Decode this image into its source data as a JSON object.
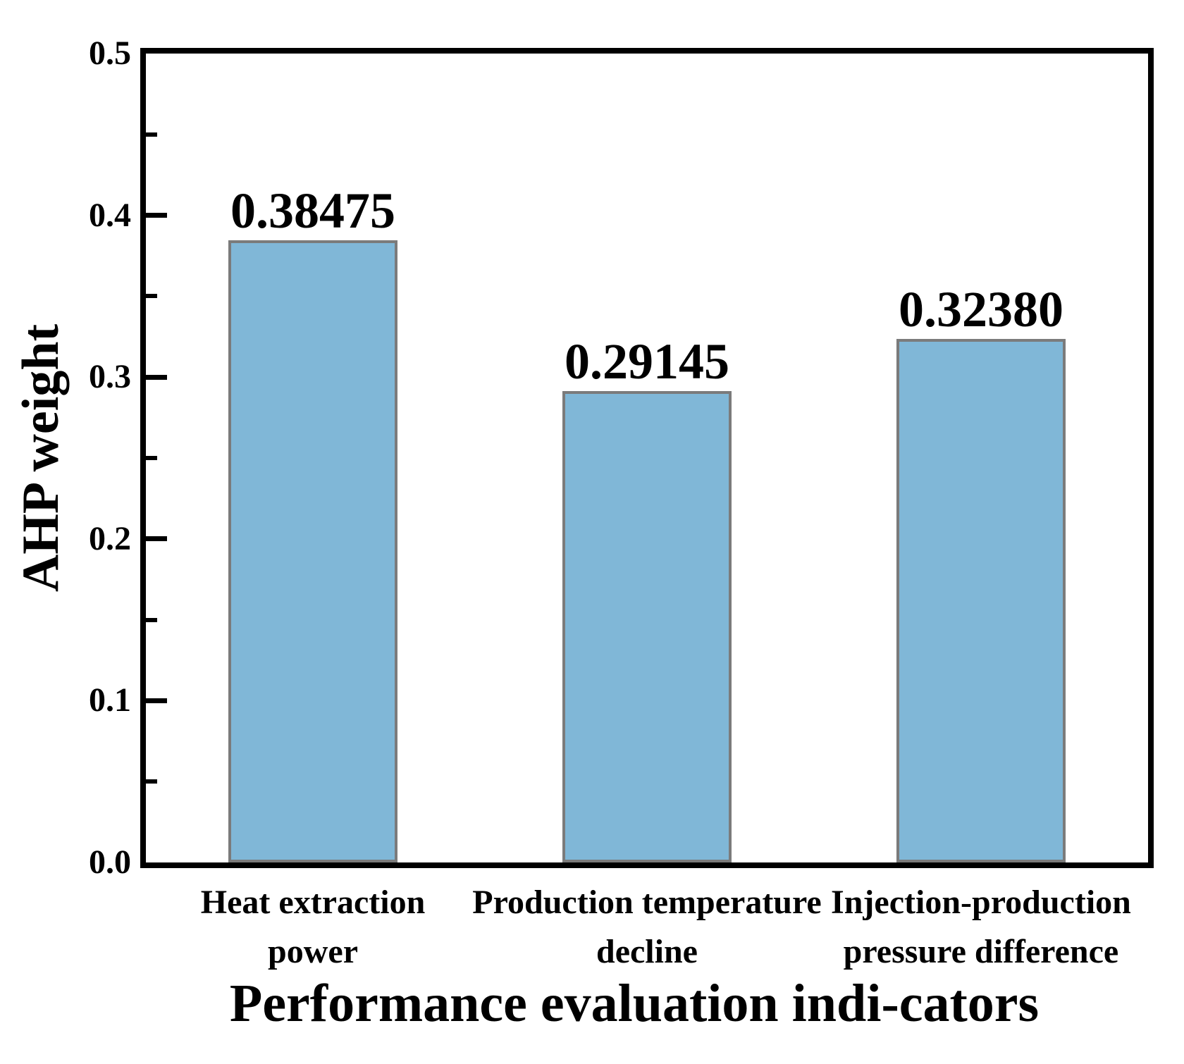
{
  "figure": {
    "background": "#ffffff",
    "spine_color": "#000000",
    "text_color": "#000000"
  },
  "chart_data": {
    "type": "bar",
    "title": "",
    "xlabel": "Performance evaluation indi-cators",
    "ylabel": "AHP weight",
    "categories": [
      "Heat extraction power",
      "Production temperature decline",
      "Injection-production pressure difference"
    ],
    "categories_lines": [
      [
        "Heat extraction",
        "power"
      ],
      [
        "Production temperature",
        "decline"
      ],
      [
        "Injection-production",
        "pressure difference"
      ]
    ],
    "values": [
      0.38475,
      0.29145,
      0.3238
    ],
    "value_labels": [
      "0.38475",
      "0.29145",
      "0.32380"
    ],
    "ylim": [
      0,
      0.5
    ],
    "y_major_ticks": [
      0,
      0.1,
      0.2,
      0.3,
      0.4,
      0.5
    ],
    "y_major_tick_labels": [
      "0.0",
      "0.1",
      "0.2",
      "0.3",
      "0.4",
      "0.5"
    ],
    "y_minor_ticks": [
      0.05,
      0.15,
      0.25,
      0.35,
      0.45
    ],
    "grid": false,
    "legend": null,
    "bar_color": "#80b7d7",
    "bar_edge_color": "#7b7b7b",
    "bar_centers_fraction": [
      0.1667,
      0.5,
      0.8333
    ]
  }
}
